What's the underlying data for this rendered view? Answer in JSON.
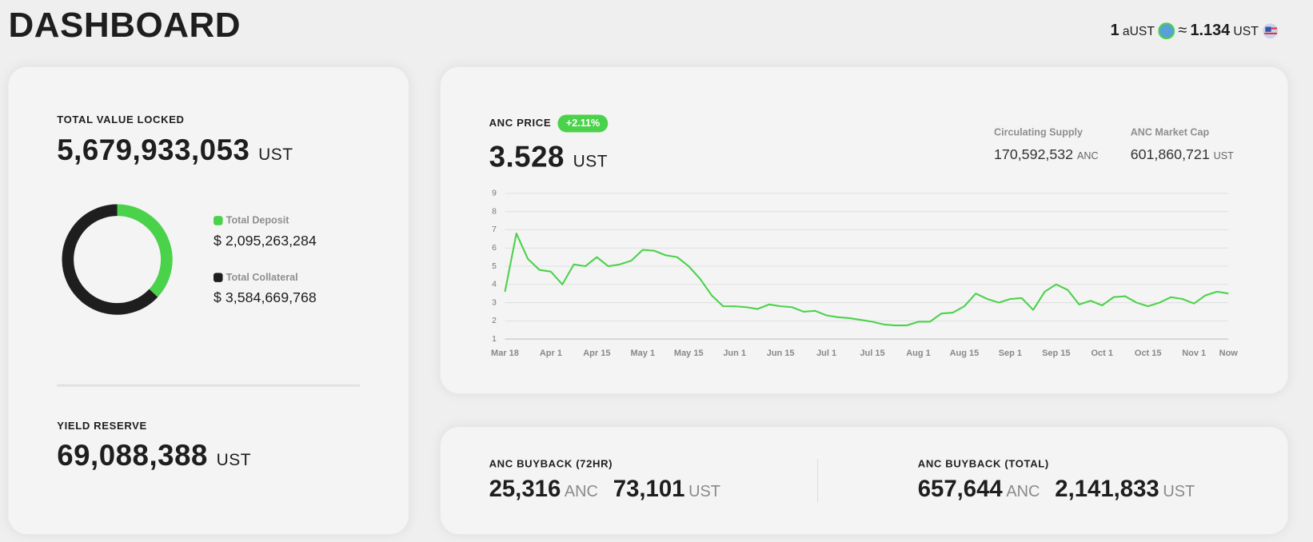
{
  "header": {
    "title": "DASHBOARD",
    "rate": {
      "amount": "1",
      "from": "aUST",
      "approx": "≈",
      "value": "1.134",
      "to": "UST"
    }
  },
  "tvl": {
    "label": "TOTAL VALUE LOCKED",
    "value": "5,679,933,053",
    "unit": "UST",
    "currency_symbol": "$"
  },
  "yield_reserve": {
    "label": "YIELD RESERVE",
    "value": "69,088,388",
    "unit": "UST"
  },
  "anc_price": {
    "label": "ANC PRICE",
    "change": "+2.11%",
    "value": "3.528",
    "unit": "UST",
    "circulating_supply": {
      "label": "Circulating Supply",
      "value": "170,592,532",
      "unit": "ANC"
    },
    "market_cap": {
      "label": "ANC Market Cap",
      "value": "601,860,721",
      "unit": "UST"
    }
  },
  "buyback_72hr": {
    "label": "ANC BUYBACK (72HR)",
    "anc": "25,316",
    "anc_unit": "ANC",
    "ust": "73,101",
    "ust_unit": "UST"
  },
  "buyback_total": {
    "label": "ANC BUYBACK (TOTAL)",
    "anc": "657,644",
    "anc_unit": "ANC",
    "ust": "2,141,833",
    "ust_unit": "UST"
  },
  "chart_data": [
    {
      "type": "pie",
      "categories": [
        "Total Deposit",
        "Total Collateral"
      ],
      "values": [
        2095263284,
        3584669768
      ],
      "value_labels": [
        "2,095,263,284",
        "3,584,669,768"
      ],
      "colors": [
        "#4bd24b",
        "#1e1e1e"
      ]
    },
    {
      "type": "line",
      "color": "#4bd24b",
      "grid": true,
      "ylim": [
        1,
        9
      ],
      "yticks": [
        1,
        2,
        3,
        4,
        5,
        6,
        7,
        8,
        9
      ],
      "x": [
        "Mar 18",
        null,
        null,
        null,
        "Apr 1",
        null,
        null,
        null,
        "Apr 15",
        null,
        null,
        null,
        "May 1",
        null,
        null,
        null,
        "May 15",
        null,
        null,
        null,
        "Jun 1",
        null,
        null,
        null,
        "Jun 15",
        null,
        null,
        null,
        "Jul 1",
        null,
        null,
        null,
        "Jul 15",
        null,
        null,
        null,
        "Aug 1",
        null,
        null,
        null,
        "Aug 15",
        null,
        null,
        null,
        "Sep 1",
        null,
        null,
        null,
        "Sep 15",
        null,
        null,
        null,
        "Oct 1",
        null,
        null,
        null,
        "Oct 15",
        null,
        null,
        null,
        "Nov 1",
        null,
        null,
        "Now"
      ],
      "values": [
        3.6,
        6.8,
        5.4,
        4.8,
        4.7,
        4.0,
        5.1,
        5.0,
        5.5,
        5.0,
        5.1,
        5.3,
        5.9,
        5.85,
        5.6,
        5.5,
        5.0,
        4.3,
        3.4,
        2.8,
        2.8,
        2.75,
        2.65,
        2.9,
        2.8,
        2.75,
        2.5,
        2.55,
        2.3,
        2.2,
        2.15,
        2.05,
        1.95,
        1.8,
        1.75,
        1.75,
        1.95,
        1.95,
        2.4,
        2.45,
        2.8,
        3.5,
        3.2,
        3.0,
        3.2,
        3.25,
        2.6,
        3.6,
        4.0,
        3.7,
        2.9,
        3.1,
        2.85,
        3.3,
        3.35,
        3.0,
        2.8,
        3.0,
        3.3,
        3.2,
        2.95,
        3.4,
        3.6,
        3.5
      ]
    }
  ]
}
